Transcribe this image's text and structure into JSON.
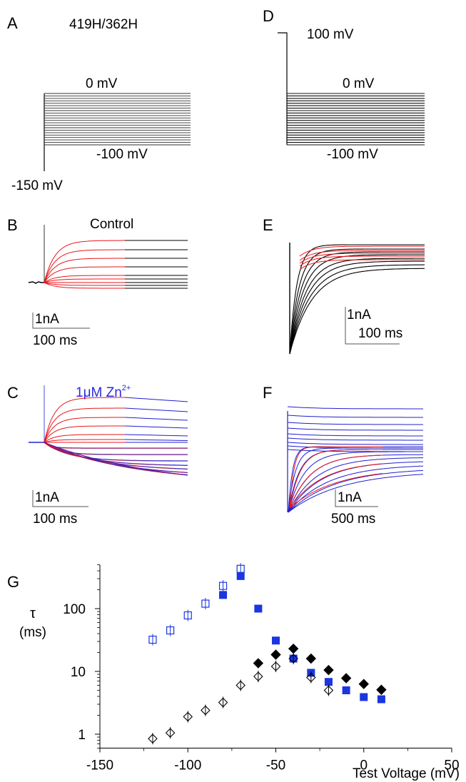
{
  "panels": {
    "A": {
      "letter": "A",
      "title": "419H/362H",
      "label_top": "0 mV",
      "label_bottom": "-100 mV",
      "label_hold": "-150 mV"
    },
    "B": {
      "letter": "B",
      "title": "Control",
      "scale_current": "1nA",
      "scale_time": "100 ms"
    },
    "C": {
      "letter": "C",
      "title_main": "1μM Zn",
      "title_sup": "2+",
      "scale_current": "1nA",
      "scale_time": "100 ms"
    },
    "D": {
      "letter": "D",
      "label_prepulse": "100 mV",
      "label_top": "0 mV",
      "label_bottom": "-100 mV"
    },
    "E": {
      "letter": "E",
      "scale_current": "1nA",
      "scale_time": "100 ms"
    },
    "F": {
      "letter": "F",
      "scale_current": "1nA",
      "scale_time": "500 ms"
    },
    "G": {
      "letter": "G"
    }
  },
  "colors": {
    "trace_black": "#000000",
    "fit_red": "#e8161b",
    "trace_blue": "#2020d0",
    "marker_blue": "#1a36e0"
  },
  "chart_data": {
    "type": "scatter",
    "ylabel_symbol": "τ",
    "ylabel_unit": "(ms)",
    "xlabel": "Test Voltage (mV)",
    "y_scale": "log",
    "xlim": [
      -150,
      50
    ],
    "ylim": [
      0.6,
      500
    ],
    "x_ticks": [
      -150,
      -100,
      -50,
      0,
      50
    ],
    "y_ticks": [
      1,
      10,
      100
    ],
    "grid": false,
    "series": [
      {
        "marker": "open-square-blue",
        "x": [
          -120,
          -110,
          -100,
          -90,
          -80,
          -70
        ],
        "y": [
          32,
          45,
          78,
          120,
          230,
          430
        ]
      },
      {
        "marker": "filled-square-blue",
        "x": [
          -80,
          -70,
          -60,
          -50,
          -40,
          -30,
          -20,
          -10,
          0,
          10
        ],
        "y": [
          165,
          330,
          100,
          31,
          16,
          9.5,
          6.8,
          5.0,
          3.9,
          3.6
        ]
      },
      {
        "marker": "open-diamond-black",
        "x": [
          -120,
          -110,
          -100,
          -90,
          -80,
          -70,
          -60,
          -50,
          -40,
          -30,
          -20
        ],
        "y": [
          0.85,
          1.05,
          1.9,
          2.4,
          3.2,
          6.0,
          8.3,
          12,
          16,
          8.0,
          5.0
        ]
      },
      {
        "marker": "filled-diamond-black",
        "x": [
          -60,
          -50,
          -40,
          -30,
          -20,
          -10,
          0,
          10
        ],
        "y": [
          13.5,
          18.5,
          23,
          16,
          10.5,
          7.8,
          6.3,
          5.1
        ]
      }
    ]
  }
}
